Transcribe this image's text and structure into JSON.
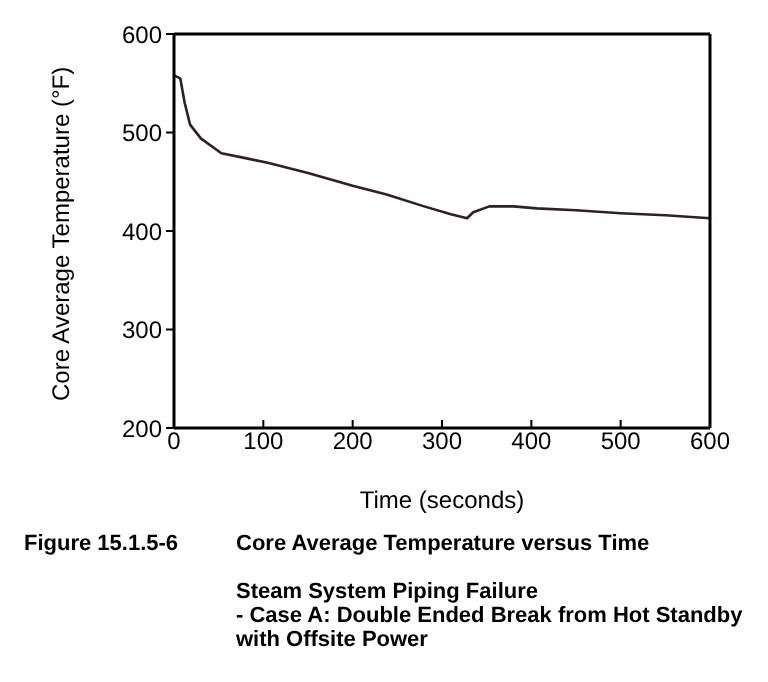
{
  "chart_data": {
    "type": "line",
    "title": "Core Average Temperature versus Time",
    "subtitle": "Steam System Piping Failure\n- Case A: Double Ended Break from Hot Standby\nwith Offsite Power",
    "annotations": [
      "Figure 15.1.5-6"
    ],
    "xlabel": "Time (seconds)",
    "ylabel": "Core Average Temperature (°F)",
    "series": [
      {
        "color": "#302020",
        "x": [
          0,
          7,
          12,
          18,
          30,
          53,
          80,
          106,
          150,
          200,
          238,
          280,
          310,
          328,
          335,
          353,
          380,
          406,
          450,
          500,
          550,
          600
        ],
        "values": [
          558,
          555,
          530,
          508,
          494,
          479,
          474,
          469,
          459,
          446,
          437,
          425,
          417,
          413,
          419,
          425,
          425,
          423,
          421,
          418,
          416,
          413
        ]
      }
    ],
    "xlim": [
      0,
      600
    ],
    "ylim": [
      200,
      600
    ],
    "xticks": [
      0,
      100,
      200,
      300,
      400,
      500,
      600
    ],
    "yticks": [
      200,
      300,
      400,
      500,
      600
    ],
    "marker": "none",
    "line_style": "solid"
  }
}
